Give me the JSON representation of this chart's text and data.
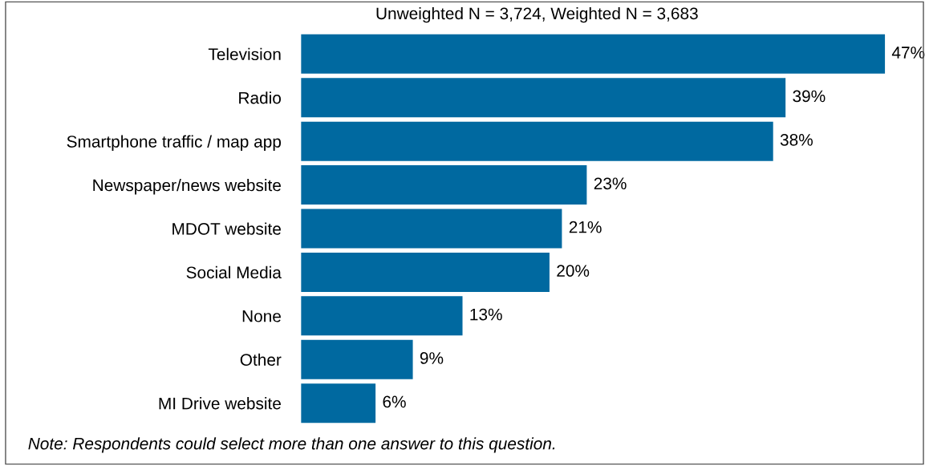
{
  "chart_data": {
    "type": "bar",
    "orientation": "horizontal",
    "title": "Unweighted N = 3,724, Weighted N = 3,683",
    "categories": [
      "Television",
      "Radio",
      "Smartphone traffic / map app",
      "Newspaper/news website",
      "MDOT website",
      "Social Media",
      "None",
      "Other",
      "MI Drive website"
    ],
    "values": [
      47,
      39,
      38,
      23,
      21,
      20,
      13,
      9,
      6
    ],
    "value_labels": [
      "47%",
      "39%",
      "38%",
      "23%",
      "21%",
      "20%",
      "13%",
      "9%",
      "6%"
    ],
    "color": "#0069a0",
    "tick_labels": "y",
    "grid": false,
    "annotations": [
      "Note: Respondents could select more than one answer to this question."
    ]
  }
}
